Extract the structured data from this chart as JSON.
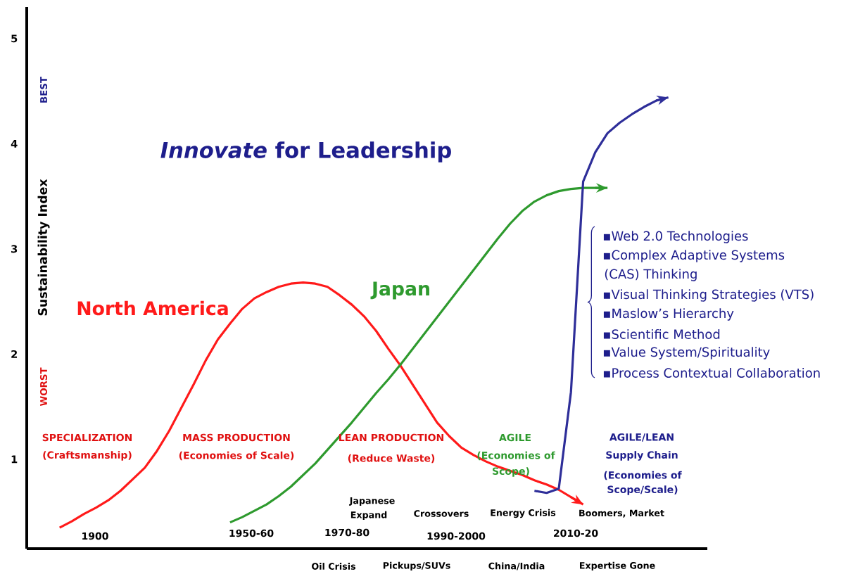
{
  "chart_data": {
    "type": "line",
    "title": "*Innovate* for Leadership",
    "ylabel": "Sustainability Index",
    "categories": [
      null,
      null,
      null,
      null,
      null,
      null,
      null,
      null,
      null,
      null,
      null,
      null,
      null,
      null,
      null,
      null,
      null,
      null,
      null,
      null,
      null,
      null,
      null,
      null,
      null,
      null,
      null,
      null,
      null,
      null,
      null,
      null,
      null,
      null,
      null,
      null,
      null,
      null,
      null,
      null,
      null,
      null,
      null,
      null,
      null,
      null,
      null,
      null,
      null,
      null,
      null
    ],
    "series": [
      {
        "name": "North America",
        "color": "#ff1a1a",
        "values": [
          0.35,
          0.41,
          0.48,
          0.54,
          0.61,
          0.7,
          0.81,
          0.92,
          1.08,
          1.27,
          1.49,
          1.71,
          1.94,
          2.14,
          2.29,
          2.43,
          2.53,
          2.59,
          2.64,
          2.67,
          2.68,
          2.67,
          2.64,
          2.56,
          2.47,
          2.36,
          2.22,
          2.05,
          1.89,
          1.71,
          1.53,
          1.35,
          1.22,
          1.11,
          1.04,
          0.98,
          0.93,
          0.89,
          0.85,
          0.8,
          0.76,
          0.71,
          0.64,
          0.57,
          null,
          null,
          null,
          null,
          null,
          null,
          null
        ]
      },
      {
        "name": "Japan",
        "color": "#2e9a2e",
        "values": [
          null,
          null,
          null,
          null,
          null,
          null,
          null,
          null,
          null,
          null,
          null,
          null,
          null,
          null,
          0.4,
          0.45,
          0.51,
          0.57,
          0.65,
          0.74,
          0.85,
          0.96,
          1.09,
          1.22,
          1.35,
          1.49,
          1.63,
          1.76,
          1.9,
          2.05,
          2.2,
          2.35,
          2.5,
          2.65,
          2.8,
          2.95,
          3.1,
          3.24,
          3.36,
          3.45,
          3.51,
          3.55,
          3.57,
          3.58,
          3.58,
          3.58,
          null,
          null,
          null,
          null,
          null
        ]
      },
      {
        "color": "#2e2e99",
        "values": [
          null,
          null,
          null,
          null,
          null,
          null,
          null,
          null,
          null,
          null,
          null,
          null,
          null,
          null,
          null,
          null,
          null,
          null,
          null,
          null,
          null,
          null,
          null,
          null,
          null,
          null,
          null,
          null,
          null,
          null,
          null,
          null,
          null,
          null,
          null,
          null,
          null,
          null,
          null,
          0.7,
          0.68,
          0.72,
          1.64,
          3.64,
          3.92,
          4.1,
          4.2,
          4.28,
          4.35,
          4.41,
          4.44
        ]
      }
    ],
    "ylim": [
      0.15,
      5.3
    ],
    "yticks": [
      1,
      2,
      3,
      4,
      5
    ],
    "line_style": "solid",
    "annotations": [
      "BEST",
      "WORST",
      "SPECIALIZATION",
      "(Craftsmanship)",
      "MASS PRODUCTION",
      "(Economies of Scale)",
      "LEAN PRODUCTION",
      "(Reduce Waste)",
      "AGILE",
      "(Economies of",
      "Scope)",
      "AGILE/LEAN",
      "Supply Chain",
      "(Economies of",
      "Scope/Scale)",
      "Japanese",
      "Expand",
      "Crossovers",
      "Energy Crisis",
      "Boomers, Market",
      "Oil Crisis",
      "Pickups/SUVs",
      "China/India",
      "Expertise Gone",
      "▪Web 2.0 Technologies",
      "▪Complex Adaptive Systems",
      "(CAS) Thinking",
      "▪Visual Thinking Strategies (VTS)",
      "▪Maslow’s Hierarchy",
      "▪Scientific Method",
      "▪Value System/Spirituality",
      "▪Process Contextual Collaboration",
      "1900",
      "1950-60",
      "1970-80",
      "1990-2000",
      "2010-20"
    ]
  }
}
